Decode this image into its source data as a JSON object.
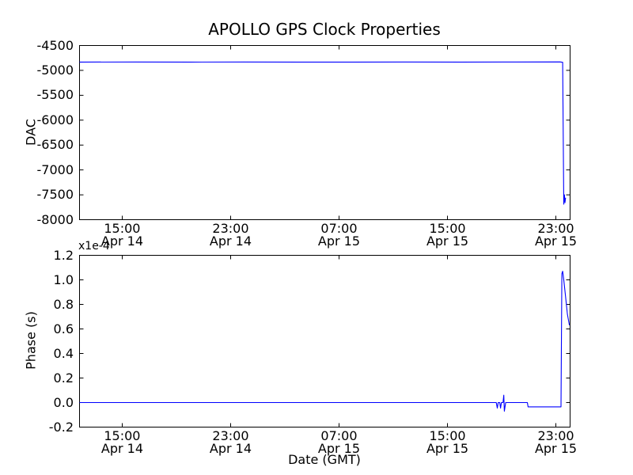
{
  "figure": {
    "background": "#ffffff",
    "axes_color": "#000000"
  },
  "chart_data": [
    {
      "id": "dac-plot",
      "type": "line",
      "title": "APOLLO GPS Clock Properties",
      "xlabel": "",
      "ylabel": "DAC",
      "xlim": [
        11.85,
        48.05
      ],
      "ylim": [
        -8000,
        -4500
      ],
      "x_unit": "hours since Apr 14 00:00 GMT",
      "grid": false,
      "legend": "none",
      "yticks": [
        {
          "v": -4500,
          "label": "-4500"
        },
        {
          "v": -5000,
          "label": "-5000"
        },
        {
          "v": -5500,
          "label": "-5500"
        },
        {
          "v": -6000,
          "label": "-6000"
        },
        {
          "v": -6500,
          "label": "-6500"
        },
        {
          "v": -7000,
          "label": "-7000"
        },
        {
          "v": -7500,
          "label": "-7500"
        },
        {
          "v": -8000,
          "label": "-8000"
        }
      ],
      "xticks": [
        {
          "v": 15,
          "time": "15:00",
          "date": "Apr 14"
        },
        {
          "v": 23,
          "time": "23:00",
          "date": "Apr 14"
        },
        {
          "v": 31,
          "time": "07:00",
          "date": "Apr 15"
        },
        {
          "v": 39,
          "time": "15:00",
          "date": "Apr 15"
        },
        {
          "v": 47,
          "time": "23:00",
          "date": "Apr 15"
        }
      ],
      "series": [
        {
          "name": "dac-line",
          "color": "#0000ff",
          "points": [
            [
              11.85,
              -4832
            ],
            [
              16,
              -4831
            ],
            [
              20,
              -4833
            ],
            [
              24,
              -4831
            ],
            [
              28,
              -4832
            ],
            [
              32,
              -4833
            ],
            [
              36,
              -4831
            ],
            [
              40,
              -4832
            ],
            [
              44,
              -4831
            ],
            [
              47.3,
              -4830
            ],
            [
              47.5,
              -4838
            ],
            [
              47.58,
              -7690
            ],
            [
              47.63,
              -7500
            ],
            [
              47.67,
              -7660
            ],
            [
              47.72,
              -7560
            ]
          ]
        }
      ]
    },
    {
      "id": "phase-plot",
      "type": "line",
      "title": "",
      "xlabel": "Date (GMT)",
      "ylabel": "Phase (s)",
      "offset_text": "x1e-4",
      "y_scale_note": "y values are multiples of 1e-4 seconds",
      "xlim": [
        11.85,
        48.05
      ],
      "ylim": [
        -0.2,
        1.2
      ],
      "x_unit": "hours since Apr 14 00:00 GMT",
      "grid": false,
      "legend": "none",
      "yticks": [
        {
          "v": 1.2,
          "label": "1.2"
        },
        {
          "v": 1.0,
          "label": "1.0"
        },
        {
          "v": 0.8,
          "label": "0.8"
        },
        {
          "v": 0.6,
          "label": "0.6"
        },
        {
          "v": 0.4,
          "label": "0.4"
        },
        {
          "v": 0.2,
          "label": "0.2"
        },
        {
          "v": 0.0,
          "label": "0.0"
        },
        {
          "v": -0.2,
          "label": "-0.2"
        }
      ],
      "xticks": [
        {
          "v": 15,
          "time": "15:00",
          "date": "Apr 14"
        },
        {
          "v": 23,
          "time": "23:00",
          "date": "Apr 14"
        },
        {
          "v": 31,
          "time": "07:00",
          "date": "Apr 15"
        },
        {
          "v": 39,
          "time": "15:00",
          "date": "Apr 15"
        },
        {
          "v": 47,
          "time": "23:00",
          "date": "Apr 15"
        }
      ],
      "series": [
        {
          "name": "phase-line",
          "color": "#0000ff",
          "points": [
            [
              11.85,
              0
            ],
            [
              20,
              0
            ],
            [
              30,
              0
            ],
            [
              40,
              0
            ],
            [
              42.6,
              0
            ],
            [
              42.68,
              -0.045
            ],
            [
              42.74,
              0
            ],
            [
              42.86,
              0
            ],
            [
              42.92,
              -0.045
            ],
            [
              42.98,
              0
            ],
            [
              43.1,
              0
            ],
            [
              43.16,
              0.06
            ],
            [
              43.2,
              -0.07
            ],
            [
              43.3,
              0
            ],
            [
              44.9,
              0
            ],
            [
              44.95,
              -0.035
            ],
            [
              47.38,
              -0.035
            ],
            [
              47.44,
              1.05
            ],
            [
              47.5,
              1.07
            ],
            [
              47.58,
              1.0
            ],
            [
              47.7,
              0.88
            ],
            [
              47.85,
              0.72
            ],
            [
              48.0,
              0.63
            ]
          ]
        }
      ]
    }
  ]
}
